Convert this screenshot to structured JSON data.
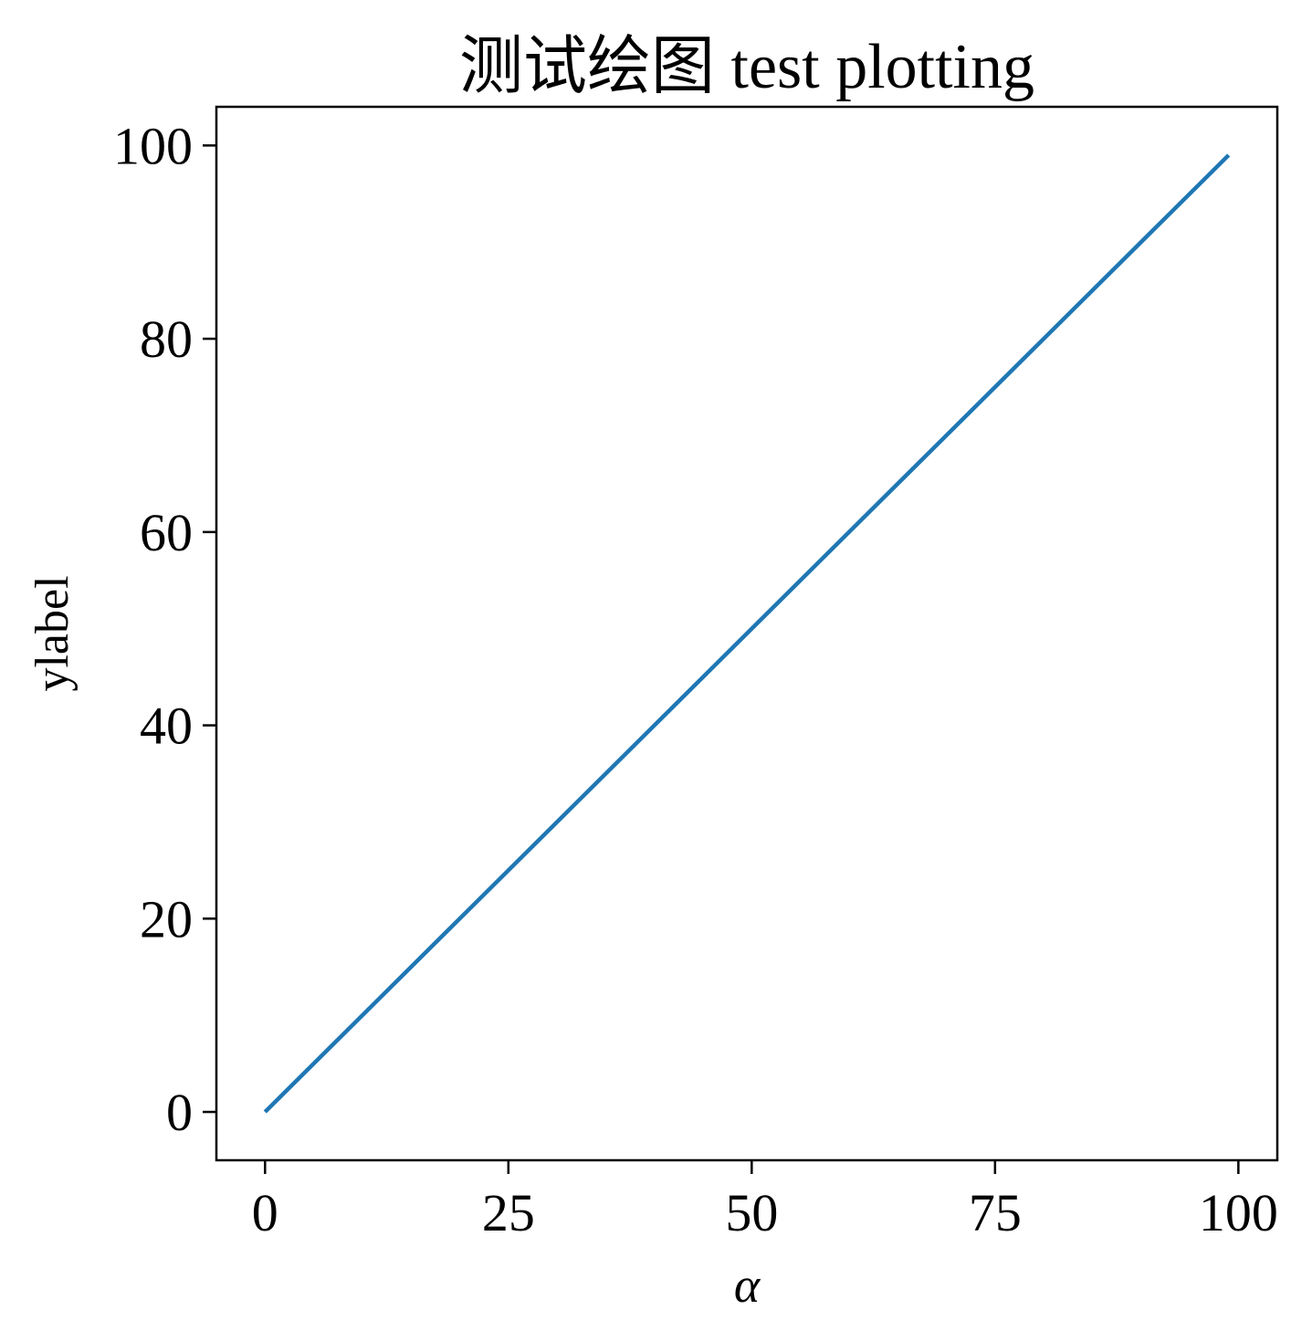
{
  "chart_data": {
    "type": "line",
    "title": "测试绘图 test plotting",
    "xlabel": "α",
    "ylabel": "ylabel",
    "xlim": [
      -5,
      104
    ],
    "ylim": [
      -5,
      104
    ],
    "xticks": [
      0,
      25,
      50,
      75,
      100
    ],
    "yticks": [
      0,
      20,
      40,
      60,
      80,
      100
    ],
    "grid": false,
    "series": [
      {
        "color": "#1f77b4",
        "x": [
          0,
          99
        ],
        "y": [
          0,
          99
        ]
      }
    ]
  }
}
